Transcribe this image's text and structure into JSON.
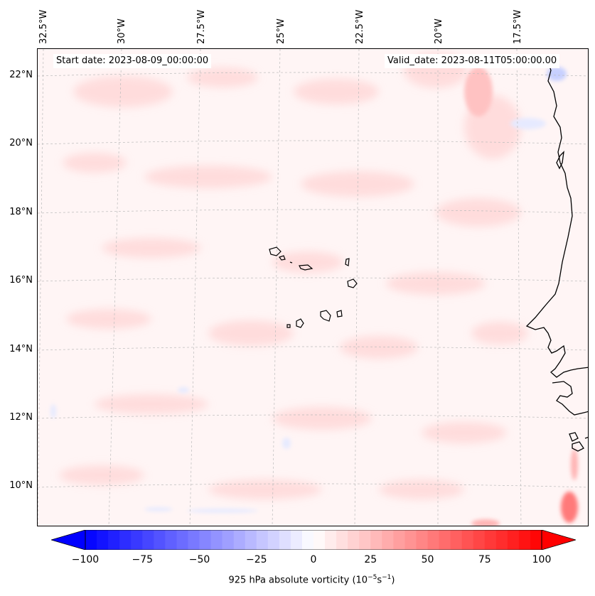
{
  "map": {
    "start_date": "Start date: 2023-08-09_00:00:00",
    "valid_date": "Valid_date: 2023-08-11T05:00:00.00",
    "lon_labels": [
      "32.5°W",
      "30°W",
      "27.5°W",
      "25°W",
      "22.5°W",
      "20°W",
      "17.5°W"
    ],
    "lat_labels": [
      "22°N",
      "20°N",
      "18°N",
      "16°N",
      "14°N",
      "12°N",
      "10°N"
    ],
    "land_outline_color": "#000000",
    "gridline_color": "#bbbbbb"
  },
  "colorbar": {
    "label_prefix": "925 hPa absolute vorticity (10",
    "label_exp1": "−5",
    "label_mid": "s",
    "label_exp2": "−1",
    "label_suffix": ")",
    "ticks": [
      "−100",
      "−75",
      "−50",
      "−25",
      "0",
      "25",
      "50",
      "75",
      "100"
    ],
    "min": -100,
    "max": 100,
    "levels": [
      -100,
      -95,
      -90,
      -85,
      -80,
      -75,
      -70,
      -65,
      -60,
      -55,
      -50,
      -45,
      -40,
      -35,
      -30,
      -25,
      -20,
      -15,
      -10,
      -5,
      0,
      5,
      10,
      15,
      20,
      25,
      30,
      35,
      40,
      45,
      50,
      55,
      60,
      65,
      70,
      75,
      80,
      85,
      90,
      95,
      100
    ],
    "extend": "both",
    "colormap": "bwr",
    "color_low": "#0000ff",
    "color_mid": "#ffffff",
    "color_high": "#ff0000"
  }
}
